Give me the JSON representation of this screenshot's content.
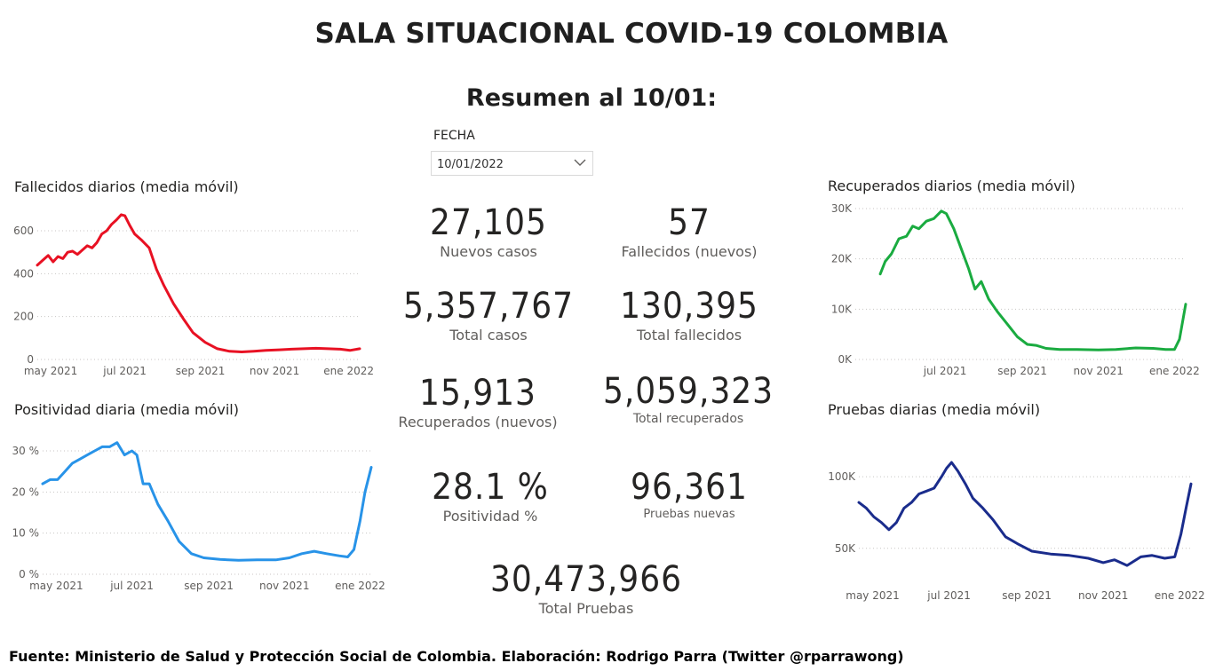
{
  "header": {
    "title": "SALA SITUACIONAL COVID-19 COLOMBIA",
    "subtitle": "Resumen al 10/01:"
  },
  "slicer": {
    "label": "FECHA",
    "value": "10/01/2022",
    "icon": "chevron-down-icon"
  },
  "kpis": [
    {
      "value": "27,105",
      "label": "Nuevos casos"
    },
    {
      "value": "57",
      "label": "Fallecidos (nuevos)"
    },
    {
      "value": "5,357,767",
      "label": "Total casos"
    },
    {
      "value": "130,395",
      "label": "Total fallecidos"
    },
    {
      "value": "15,913",
      "label": "Recuperados (nuevos)"
    },
    {
      "value": "5,059,323",
      "label": "Total recuperados"
    },
    {
      "value": "28.1 %",
      "label": "Positividad %"
    },
    {
      "value": "96,361",
      "label": "Pruebas nuevas"
    },
    {
      "value": "30,473,966",
      "label": "Total Pruebas"
    }
  ],
  "footer": "Fuente: Ministerio de Salud y Protección Social de Colombia. Elaboración: Rodrigo Parra (Twitter @rparrawong)",
  "chart_data": [
    {
      "type": "line",
      "title": "Fallecidos diarios (media móvil)",
      "color": "#e81123",
      "x_range": [
        "2021-04-20",
        "2022-01-10"
      ],
      "x_ticks": [
        {
          "date": "2021-05-01",
          "label": "may 2021"
        },
        {
          "date": "2021-07-01",
          "label": "jul 2021"
        },
        {
          "date": "2021-09-01",
          "label": "sep 2021"
        },
        {
          "date": "2021-11-01",
          "label": "nov 2021"
        },
        {
          "date": "2022-01-01",
          "label": "ene 2022"
        }
      ],
      "y_ticks": [
        {
          "v": 0,
          "label": "0"
        },
        {
          "v": 200,
          "label": "200"
        },
        {
          "v": 400,
          "label": "400"
        },
        {
          "v": 600,
          "label": "600"
        }
      ],
      "ylim": [
        0,
        600
      ],
      "grid": true,
      "x": [
        "2021-04-20",
        "2021-04-25",
        "2021-04-29",
        "2021-05-03",
        "2021-05-07",
        "2021-05-11",
        "2021-05-15",
        "2021-05-19",
        "2021-05-23",
        "2021-05-27",
        "2021-05-31",
        "2021-06-04",
        "2021-06-08",
        "2021-06-12",
        "2021-06-16",
        "2021-06-20",
        "2021-06-24",
        "2021-06-28",
        "2021-07-01",
        "2021-07-05",
        "2021-07-09",
        "2021-07-15",
        "2021-07-21",
        "2021-07-27",
        "2021-08-02",
        "2021-08-10",
        "2021-08-18",
        "2021-08-26",
        "2021-09-05",
        "2021-09-15",
        "2021-09-25",
        "2021-10-05",
        "2021-10-15",
        "2021-10-25",
        "2021-11-05",
        "2021-11-15",
        "2021-11-25",
        "2021-12-05",
        "2021-12-15",
        "2021-12-25",
        "2022-01-02",
        "2022-01-10"
      ],
      "y": [
        440,
        465,
        485,
        455,
        480,
        470,
        500,
        505,
        490,
        510,
        530,
        520,
        545,
        585,
        600,
        630,
        650,
        675,
        670,
        625,
        585,
        555,
        520,
        420,
        345,
        260,
        190,
        125,
        80,
        50,
        38,
        35,
        38,
        42,
        45,
        48,
        50,
        52,
        50,
        48,
        42,
        50
      ]
    },
    {
      "type": "line",
      "title": "Positividad diaria (media móvil)",
      "color": "#2893e8",
      "x_range": [
        "2021-04-20",
        "2022-01-10"
      ],
      "x_ticks": [
        {
          "date": "2021-05-01",
          "label": "may 2021"
        },
        {
          "date": "2021-07-01",
          "label": "jul 2021"
        },
        {
          "date": "2021-09-01",
          "label": "sep 2021"
        },
        {
          "date": "2021-11-01",
          "label": "nov 2021"
        },
        {
          "date": "2022-01-01",
          "label": "ene 2022"
        }
      ],
      "y_ticks": [
        {
          "v": 0,
          "label": "0 %"
        },
        {
          "v": 10,
          "label": "10 %"
        },
        {
          "v": 20,
          "label": "20 %"
        },
        {
          "v": 30,
          "label": "30 %"
        }
      ],
      "ylim": [
        0,
        30
      ],
      "grid": true,
      "x": [
        "2021-04-20",
        "2021-04-26",
        "2021-05-02",
        "2021-05-08",
        "2021-05-14",
        "2021-05-20",
        "2021-05-26",
        "2021-06-01",
        "2021-06-07",
        "2021-06-13",
        "2021-06-19",
        "2021-06-25",
        "2021-07-01",
        "2021-07-05",
        "2021-07-10",
        "2021-07-15",
        "2021-07-22",
        "2021-07-30",
        "2021-08-08",
        "2021-08-18",
        "2021-08-28",
        "2021-09-10",
        "2021-09-25",
        "2021-10-10",
        "2021-10-25",
        "2021-11-05",
        "2021-11-15",
        "2021-11-25",
        "2021-12-05",
        "2021-12-15",
        "2021-12-22",
        "2021-12-27",
        "2022-01-01",
        "2022-01-05",
        "2022-01-10"
      ],
      "y": [
        22,
        23,
        23,
        25,
        27,
        28,
        29,
        30,
        31,
        31,
        32,
        29,
        30,
        29,
        22,
        22,
        17,
        13,
        8,
        5,
        4,
        3.6,
        3.4,
        3.5,
        3.5,
        4,
        5,
        5.6,
        5,
        4.5,
        4.2,
        6,
        13,
        20,
        26
      ]
    },
    {
      "type": "line",
      "title": "Recuperados diarios (media móvil)",
      "color": "#1aab40",
      "x_range": [
        "2021-04-20",
        "2022-01-10"
      ],
      "x_ticks": [
        {
          "date": "2021-07-01",
          "label": "jul 2021"
        },
        {
          "date": "2021-09-01",
          "label": "sep 2021"
        },
        {
          "date": "2021-11-01",
          "label": "nov 2021"
        },
        {
          "date": "2022-01-01",
          "label": "ene 2022"
        }
      ],
      "y_ticks": [
        {
          "v": 0,
          "label": "0K"
        },
        {
          "v": 10000,
          "label": "10K"
        },
        {
          "v": 20000,
          "label": "20K"
        },
        {
          "v": 30000,
          "label": "30K"
        }
      ],
      "ylim": [
        0,
        30000
      ],
      "grid": true,
      "x": [
        "2021-05-10",
        "2021-05-14",
        "2021-05-19",
        "2021-05-25",
        "2021-05-31",
        "2021-06-05",
        "2021-06-10",
        "2021-06-16",
        "2021-06-22",
        "2021-06-28",
        "2021-07-02",
        "2021-07-08",
        "2021-07-14",
        "2021-07-20",
        "2021-07-25",
        "2021-07-30",
        "2021-08-05",
        "2021-08-12",
        "2021-08-20",
        "2021-08-28",
        "2021-09-05",
        "2021-09-12",
        "2021-09-20",
        "2021-10-01",
        "2021-10-15",
        "2021-11-01",
        "2021-11-15",
        "2021-12-01",
        "2021-12-15",
        "2021-12-25",
        "2022-01-01",
        "2022-01-05",
        "2022-01-10"
      ],
      "y": [
        17000,
        19500,
        21000,
        24000,
        24500,
        26500,
        26000,
        27500,
        28000,
        29500,
        29000,
        26000,
        22000,
        18000,
        14000,
        15500,
        12000,
        9500,
        7000,
        4500,
        3000,
        2800,
        2200,
        2000,
        2000,
        1900,
        2000,
        2300,
        2200,
        2000,
        2000,
        4000,
        11000
      ]
    },
    {
      "type": "line",
      "title": "Pruebas diarias (media móvil)",
      "color": "#1a2c8c",
      "x_range": [
        "2021-04-20",
        "2022-01-10"
      ],
      "x_ticks": [
        {
          "date": "2021-05-01",
          "label": "may 2021"
        },
        {
          "date": "2021-07-01",
          "label": "jul 2021"
        },
        {
          "date": "2021-09-01",
          "label": "sep 2021"
        },
        {
          "date": "2021-11-01",
          "label": "nov 2021"
        },
        {
          "date": "2022-01-01",
          "label": "ene 2022"
        }
      ],
      "y_ticks": [
        {
          "v": 50000,
          "label": "50K"
        },
        {
          "v": 100000,
          "label": "100K"
        }
      ],
      "ylim": [
        30000,
        110000
      ],
      "grid": true,
      "x": [
        "2021-04-20",
        "2021-04-26",
        "2021-05-02",
        "2021-05-08",
        "2021-05-14",
        "2021-05-20",
        "2021-05-26",
        "2021-06-01",
        "2021-06-07",
        "2021-06-13",
        "2021-06-19",
        "2021-06-25",
        "2021-06-29",
        "2021-07-03",
        "2021-07-08",
        "2021-07-14",
        "2021-07-20",
        "2021-07-28",
        "2021-08-05",
        "2021-08-15",
        "2021-08-25",
        "2021-09-05",
        "2021-09-20",
        "2021-10-05",
        "2021-10-20",
        "2021-11-01",
        "2021-11-10",
        "2021-11-20",
        "2021-12-01",
        "2021-12-10",
        "2021-12-20",
        "2021-12-28",
        "2022-01-02",
        "2022-01-06",
        "2022-01-10"
      ],
      "y": [
        82000,
        78000,
        72000,
        68000,
        63000,
        68000,
        78000,
        82000,
        88000,
        90000,
        92000,
        100000,
        106000,
        110000,
        104000,
        95000,
        85000,
        78000,
        70000,
        58000,
        53000,
        48000,
        46000,
        45000,
        43000,
        40000,
        42000,
        38000,
        44000,
        45000,
        43000,
        44000,
        60000,
        78000,
        95000
      ]
    }
  ]
}
